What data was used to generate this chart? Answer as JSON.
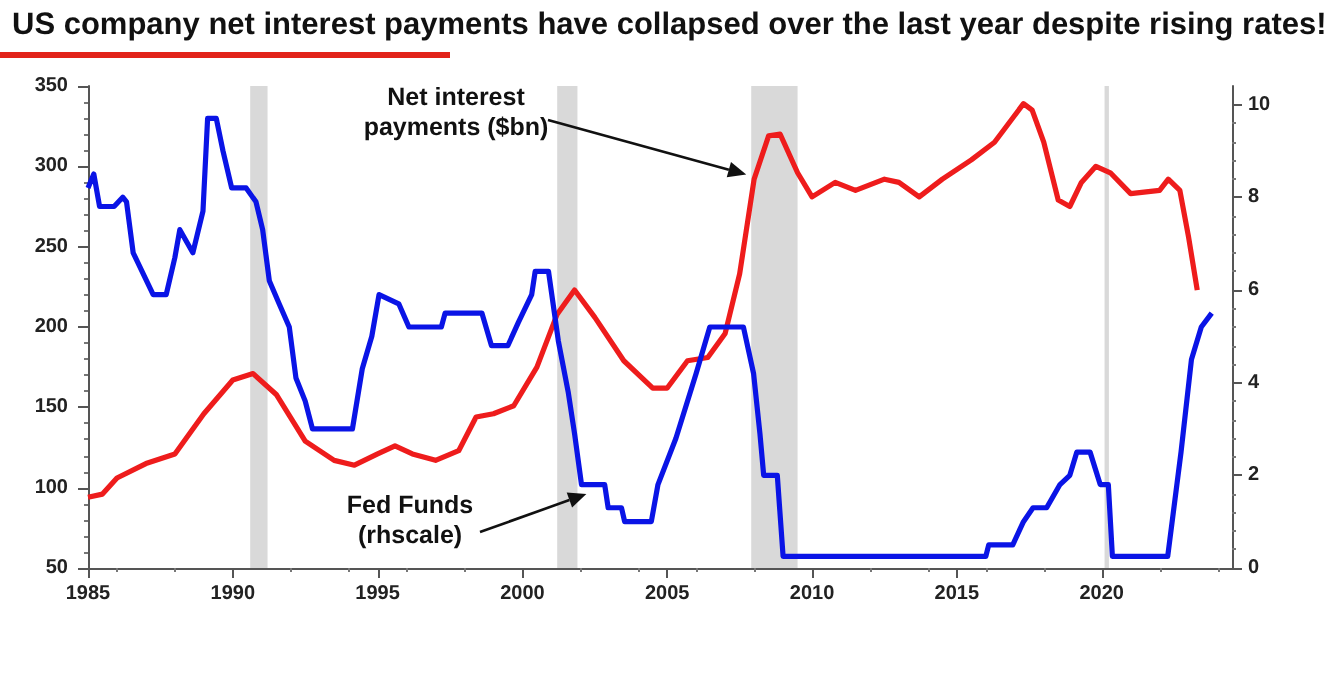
{
  "chart_data": {
    "type": "line",
    "title": "US company net interest payments have collapsed over the last year despite rising rates!",
    "xlim": [
      1985,
      2024.5
    ],
    "xticks": [
      1985,
      1990,
      1995,
      2000,
      2005,
      2010,
      2015,
      2020
    ],
    "ylim": [
      50,
      350
    ],
    "yticks": [
      50,
      100,
      150,
      200,
      250,
      300,
      350
    ],
    "y2lim": [
      0,
      10.4
    ],
    "y2ticks": [
      0,
      2,
      4,
      6,
      8,
      10
    ],
    "grid": false,
    "marker": "none",
    "line_style": "solid",
    "bands": [
      {
        "axis": "x",
        "from": 1990.6,
        "to": 1991.2,
        "color": "#d9d9d9"
      },
      {
        "axis": "x",
        "from": 2001.2,
        "to": 2001.9,
        "color": "#d9d9d9"
      },
      {
        "axis": "x",
        "from": 2007.9,
        "to": 2009.5,
        "color": "#d9d9d9"
      },
      {
        "axis": "x",
        "from": 2020.1,
        "to": 2020.25,
        "color": "#d9d9d9"
      }
    ],
    "annotations": [
      "Net interest\npayments ($bn)",
      "Fed Funds\n(rhscale)"
    ],
    "series": [
      {
        "color": "#ee1c1c",
        "x": [
          1985,
          1985.5,
          1986,
          1987,
          1988,
          1989,
          1990,
          1990.7,
          1991.5,
          1992.5,
          1993.5,
          1994.2,
          1995,
          1995.6,
          1996.2,
          1997,
          1997.8,
          1998.4,
          1999,
          1999.7,
          2000.5,
          2001.2,
          2001.8,
          2002.5,
          2003.5,
          2004.5,
          2005,
          2005.7,
          2006.4,
          2007,
          2007.5,
          2008,
          2008.5,
          2008.9,
          2009.5,
          2010,
          2010.8,
          2011.5,
          2012.5,
          2013,
          2013.7,
          2014.5,
          2015.5,
          2016.3,
          2017.3,
          2017.6,
          2018,
          2018.5,
          2018.9,
          2019.3,
          2019.8,
          2020.3,
          2021,
          2022,
          2022.3,
          2022.7,
          2023,
          2023.3
        ],
        "values": [
          94,
          96,
          106,
          115,
          121,
          146,
          167,
          171,
          158,
          129,
          117,
          114,
          121,
          126,
          121,
          117,
          123,
          144,
          146,
          151,
          175,
          208,
          223,
          206,
          179,
          162,
          162,
          179,
          181,
          196,
          233,
          292,
          319,
          320,
          296,
          281,
          290,
          285,
          292,
          290,
          281,
          292,
          304,
          315,
          339,
          335,
          315,
          279,
          275,
          290,
          300,
          296,
          283,
          285,
          292,
          285,
          256,
          223
        ]
      },
      {
        "color": "#0a14e6",
        "axis": "y2",
        "x": [
          1985,
          1985.2,
          1985.4,
          1985.9,
          1986.2,
          1986.33,
          1986.56,
          1987.25,
          1987.7,
          1988,
          1988.17,
          1988.62,
          1988.97,
          1989.13,
          1989.43,
          1989.66,
          1989.96,
          1990.46,
          1990.8,
          1991.03,
          1991.26,
          1991.6,
          1991.95,
          1992.18,
          1992.5,
          1992.75,
          1994.13,
          1994.47,
          1994.8,
          1995.05,
          1995.73,
          1996.08,
          1997.2,
          1997.33,
          1998.6,
          1998.93,
          1999.5,
          1999.86,
          2000.32,
          2000.44,
          2000.9,
          2001.24,
          2001.58,
          2001.8,
          2002.04,
          2002.84,
          2002.96,
          2003.42,
          2003.53,
          2004.45,
          2004.68,
          2005.3,
          2006,
          2006.47,
          2007.63,
          2007.98,
          2008.2,
          2008.33,
          2008.8,
          2009,
          2016,
          2016.1,
          2016.93,
          2017.3,
          2017.63,
          2018.1,
          2018.56,
          2018.9,
          2019.14,
          2019.6,
          2019.95,
          2020.23,
          2020.37,
          2022.28,
          2022.74,
          2023.1,
          2023.44,
          2023.8
        ],
        "values": [
          8.2,
          8.5,
          7.8,
          7.8,
          8.0,
          7.9,
          6.8,
          5.9,
          5.9,
          6.7,
          7.3,
          6.8,
          7.7,
          9.7,
          9.7,
          9.0,
          8.2,
          8.2,
          7.9,
          7.3,
          6.2,
          5.7,
          5.2,
          4.1,
          3.6,
          3.0,
          3.0,
          4.3,
          5.0,
          5.9,
          5.7,
          5.2,
          5.2,
          5.5,
          5.5,
          4.8,
          4.8,
          5.3,
          5.9,
          6.4,
          6.4,
          4.9,
          3.8,
          2.9,
          1.8,
          1.8,
          1.3,
          1.3,
          1.0,
          1.0,
          1.8,
          2.8,
          4.2,
          5.2,
          5.2,
          4.2,
          2.9,
          2.0,
          2.0,
          0.25,
          0.25,
          0.5,
          0.5,
          1.0,
          1.3,
          1.3,
          1.8,
          2.0,
          2.5,
          2.5,
          1.8,
          1.8,
          0.25,
          0.25,
          2.5,
          4.5,
          5.2,
          5.5
        ]
      }
    ]
  }
}
